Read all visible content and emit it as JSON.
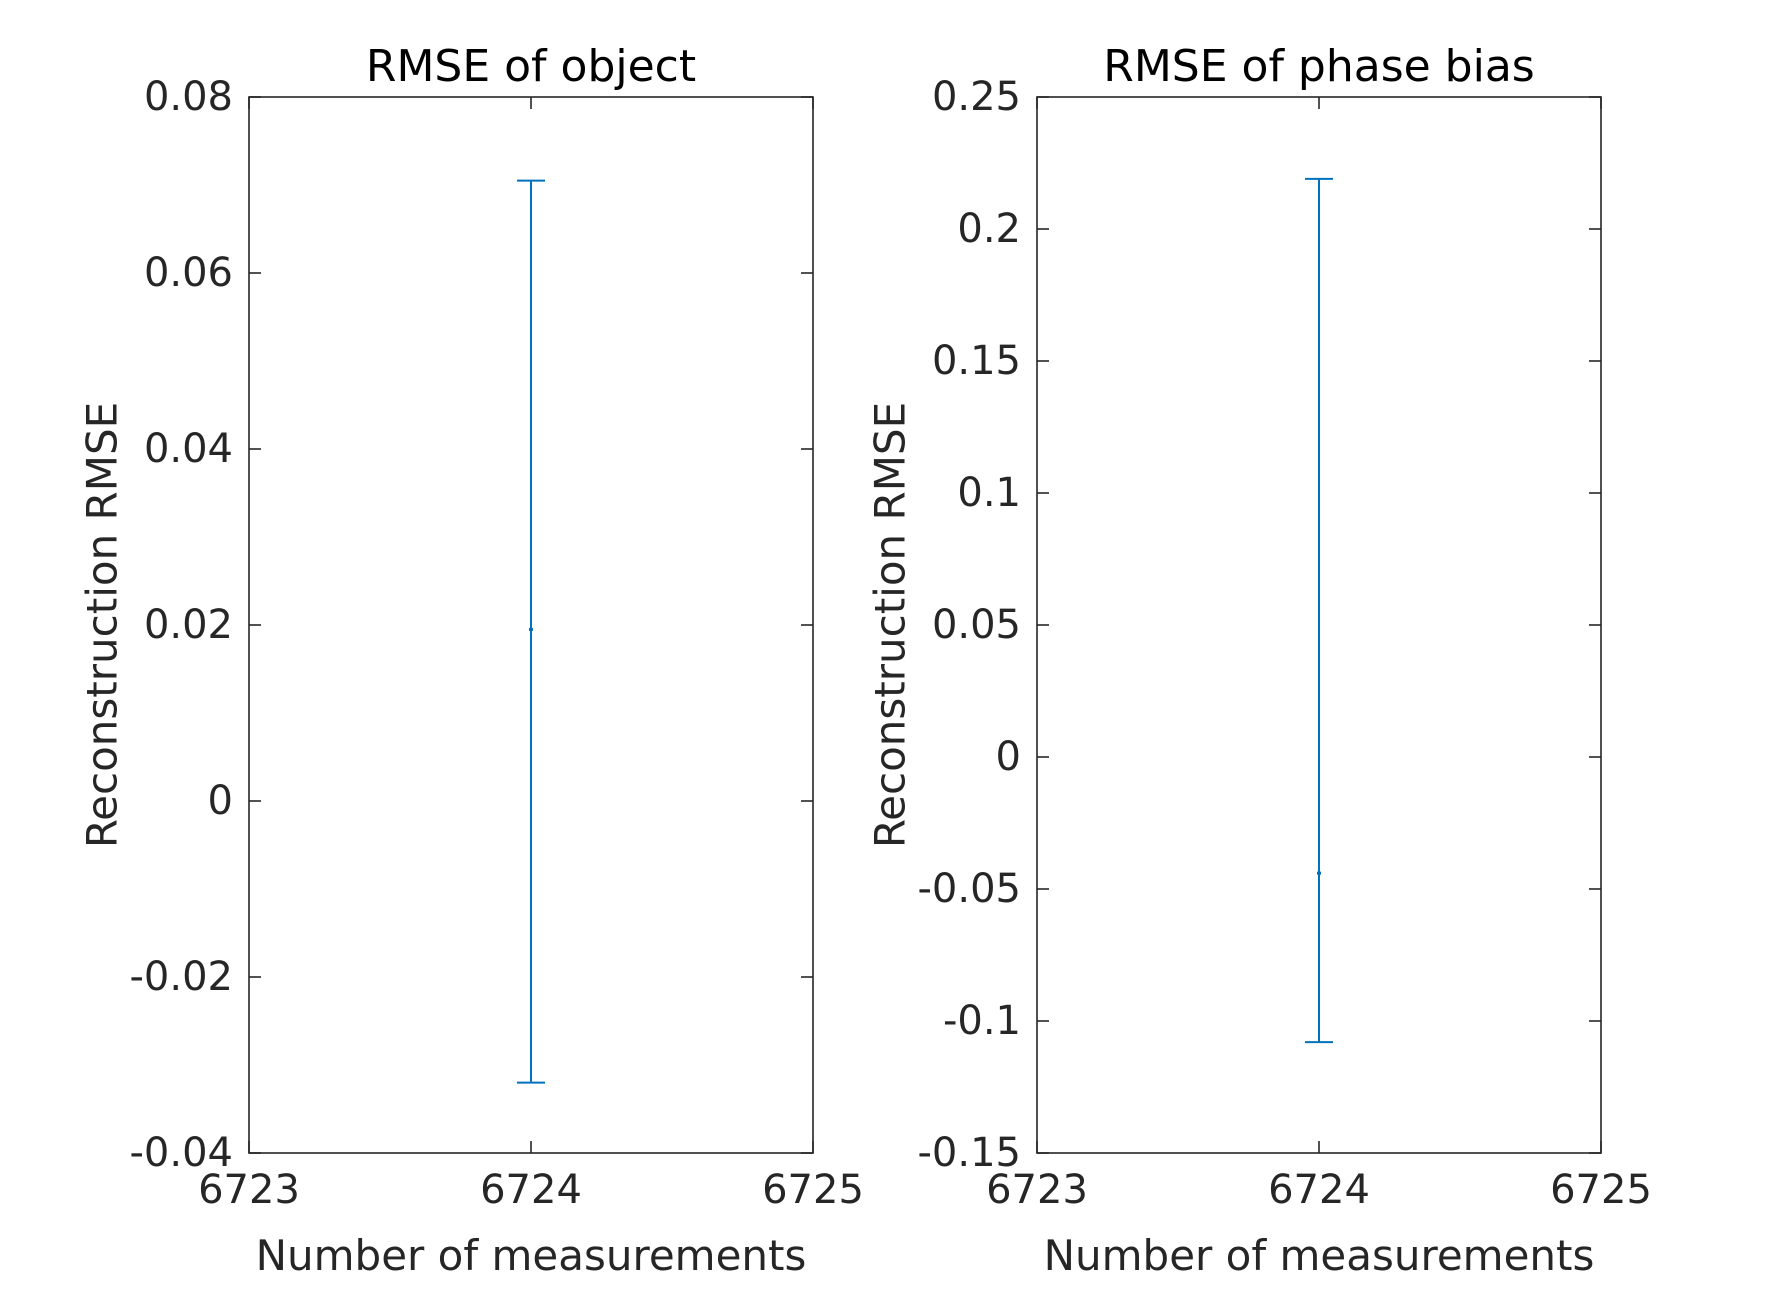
{
  "chart_data": [
    {
      "type": "errorbar",
      "title": "RMSE of object",
      "xlabel": "Number of measurements",
      "ylabel": "Reconstruction RMSE",
      "xlim": [
        6723,
        6725
      ],
      "ylim": [
        -0.04,
        0.08
      ],
      "x_ticks": [
        "6723",
        "6724",
        "6725"
      ],
      "y_ticks": [
        "-0.04",
        "-0.02",
        "0",
        "0.02",
        "0.04",
        "0.06",
        "0.08"
      ],
      "grid": false,
      "color": "#0072BD",
      "points": [
        {
          "x": 6724,
          "y": 0.0195,
          "lower": -0.032,
          "upper": 0.0705
        }
      ]
    },
    {
      "type": "errorbar",
      "title": "RMSE of phase bias",
      "xlabel": "Number of measurements",
      "ylabel": "Reconstruction RMSE",
      "xlim": [
        6723,
        6725
      ],
      "ylim": [
        -0.15,
        0.25
      ],
      "x_ticks": [
        "6723",
        "6724",
        "6725"
      ],
      "y_ticks": [
        "-0.15",
        "-0.1",
        "-0.05",
        "0",
        "0.05",
        "0.1",
        "0.15",
        "0.2",
        "0.25"
      ],
      "grid": false,
      "color": "#0072BD",
      "points": [
        {
          "x": 6724,
          "y": -0.044,
          "lower": -0.108,
          "upper": 0.219
        }
      ]
    }
  ]
}
